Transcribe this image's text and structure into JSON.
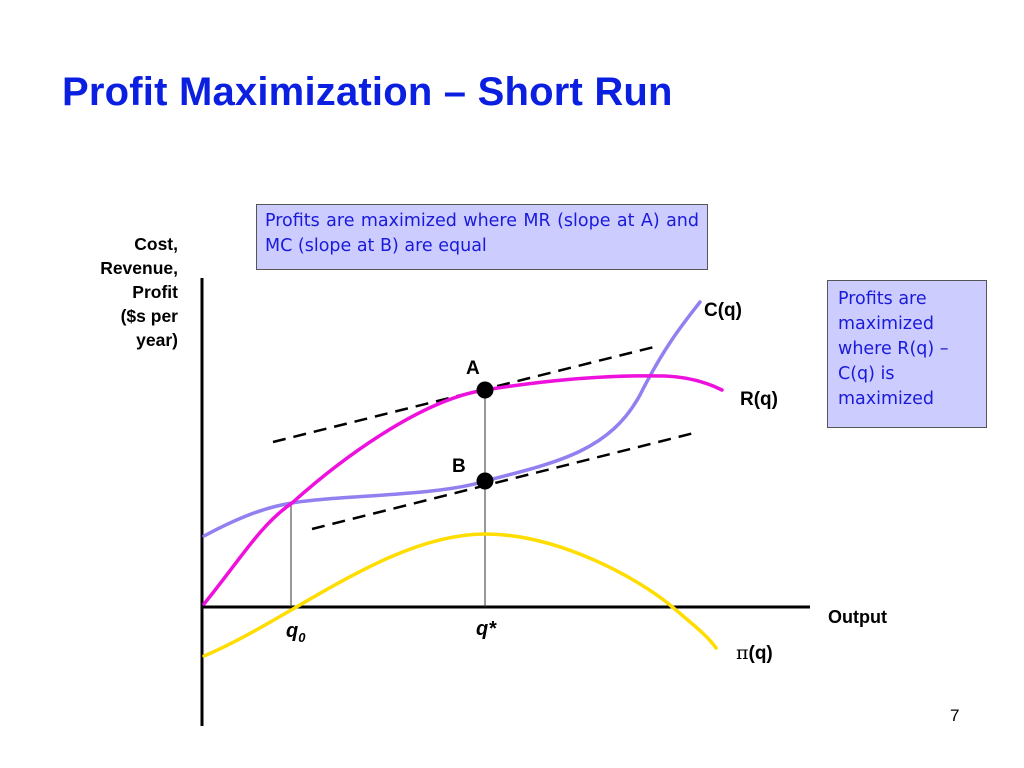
{
  "slide": {
    "title": "Profit Maximization – Short Run",
    "page_number": "7"
  },
  "notes": {
    "top": "Profits are maximized where MR (slope at A) and MC (slope at B) are equal",
    "right": "Profits are maximized where R(q) – C(q) is maximized"
  },
  "axes": {
    "y_label": "Cost,\nRevenue,\nProfit\n($s per\nyear)",
    "x_label": "Output"
  },
  "curves": {
    "cost": {
      "label": "C(q)",
      "color": "#9080f0"
    },
    "revenue": {
      "label": "R(q)",
      "color": "#ee10dd"
    },
    "profit": {
      "label": "π(q)",
      "pi_symbol": "π",
      "paren_part": "(q)",
      "color": "#ffdd00"
    }
  },
  "points": {
    "a": "A",
    "b": "B"
  },
  "ticks": {
    "q0": "q",
    "q0_sub": "0",
    "qstar": "q*"
  }
}
